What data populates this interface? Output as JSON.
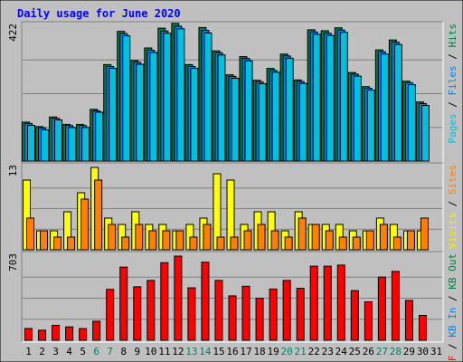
{
  "chart_data": {
    "type": "bar",
    "title": "Daily usage for June 2020",
    "categories": [
      "1",
      "2",
      "3",
      "4",
      "5",
      "6",
      "7",
      "8",
      "9",
      "10",
      "11",
      "12",
      "13",
      "14",
      "15",
      "16",
      "17",
      "18",
      "19",
      "20",
      "21",
      "22",
      "23",
      "24",
      "25",
      "26",
      "27",
      "28",
      "29",
      "30",
      "31"
    ],
    "weekend_days": [
      "6",
      "7",
      "13",
      "14",
      "20",
      "21",
      "27",
      "28"
    ],
    "panels": [
      {
        "id": "top",
        "max_label": "422",
        "ylim": [
          0,
          422
        ],
        "side_label": [
          {
            "text": "Pages",
            "color": "#00c0e0"
          },
          {
            "text": " / ",
            "color": "#000000"
          },
          {
            "text": "Files",
            "color": "#0080ff"
          },
          {
            "text": " / ",
            "color": "#000000"
          },
          {
            "text": "Hits",
            "color": "#008040"
          }
        ],
        "series": [
          {
            "name": "Hits",
            "color": "#008040",
            "values": [
              122,
              108,
              138,
              115,
              115,
              162,
              302,
              406,
              315,
              354,
              416,
              431,
              302,
              418,
              345,
              270,
              327,
              253,
              290,
              335,
              254,
              411,
              408,
              417,
              277,
              233,
              348,
              379,
              250,
              185,
              0
            ]
          },
          {
            "name": "Files",
            "color": "#0080ff",
            "values": [
              118,
              104,
              134,
              111,
              111,
              157,
              296,
              399,
              309,
              347,
              407,
              422,
              296,
              409,
              339,
              265,
              321,
              248,
              284,
              329,
              249,
              404,
              400,
              410,
              272,
              228,
              342,
              372,
              245,
              180,
              0
            ]
          },
          {
            "name": "Pages",
            "color": "#00c0e0",
            "values": [
              112,
              98,
              129,
              105,
              105,
              153,
              290,
              392,
              303,
              340,
              400,
              414,
              290,
              401,
              332,
              259,
              314,
              242,
              278,
              322,
              243,
              397,
              393,
              403,
              266,
              222,
              335,
              365,
              239,
              174,
              0
            ]
          }
        ]
      },
      {
        "id": "middle",
        "max_label": "13",
        "ylim": [
          0,
          13
        ],
        "side_label": [
          {
            "text": "Visits",
            "color": "#f0f000"
          },
          {
            "text": " / ",
            "color": "#000000"
          },
          {
            "text": "Sites",
            "color": "#ff8000"
          }
        ],
        "series": [
          {
            "name": "Visits",
            "color": "#ffff00",
            "values": [
              11,
              3,
              3,
              6,
              9,
              13,
              5,
              4,
              6,
              4,
              4,
              3,
              4,
              5,
              12,
              11,
              4,
              6,
              6,
              3,
              6,
              4,
              4,
              4,
              3,
              3,
              5,
              4,
              3,
              3,
              0
            ]
          },
          {
            "name": "Sites",
            "color": "#ff8000",
            "values": [
              5,
              3,
              2,
              2,
              8,
              11,
              4,
              2,
              4,
              3,
              3,
              3,
              2,
              4,
              2,
              2,
              3,
              4,
              3,
              2,
              5,
              4,
              3,
              2,
              2,
              3,
              4,
              2,
              3,
              5,
              0
            ]
          }
        ]
      },
      {
        "id": "bottom",
        "max_label": "703",
        "ylim": [
          0,
          703
        ],
        "side_label": [
          {
            "text": "KB F",
            "color": "#ff0000"
          },
          {
            "text": " / ",
            "color": "#000000"
          },
          {
            "text": "KB In",
            "color": "#0080ff"
          },
          {
            "text": " / ",
            "color": "#000000"
          },
          {
            "text": "KB Out",
            "color": "#008040"
          }
        ],
        "series": [
          {
            "name": "KB F",
            "color": "#ff0000",
            "values": [
              98,
              84,
              125,
              112,
              98,
              159,
              425,
              611,
              447,
              500,
              648,
              703,
              438,
              652,
              500,
              371,
              451,
              351,
              428,
              500,
              434,
              619,
              619,
              628,
              415,
              321,
              528,
              575,
              333,
              208,
              0
            ]
          }
        ]
      }
    ]
  }
}
